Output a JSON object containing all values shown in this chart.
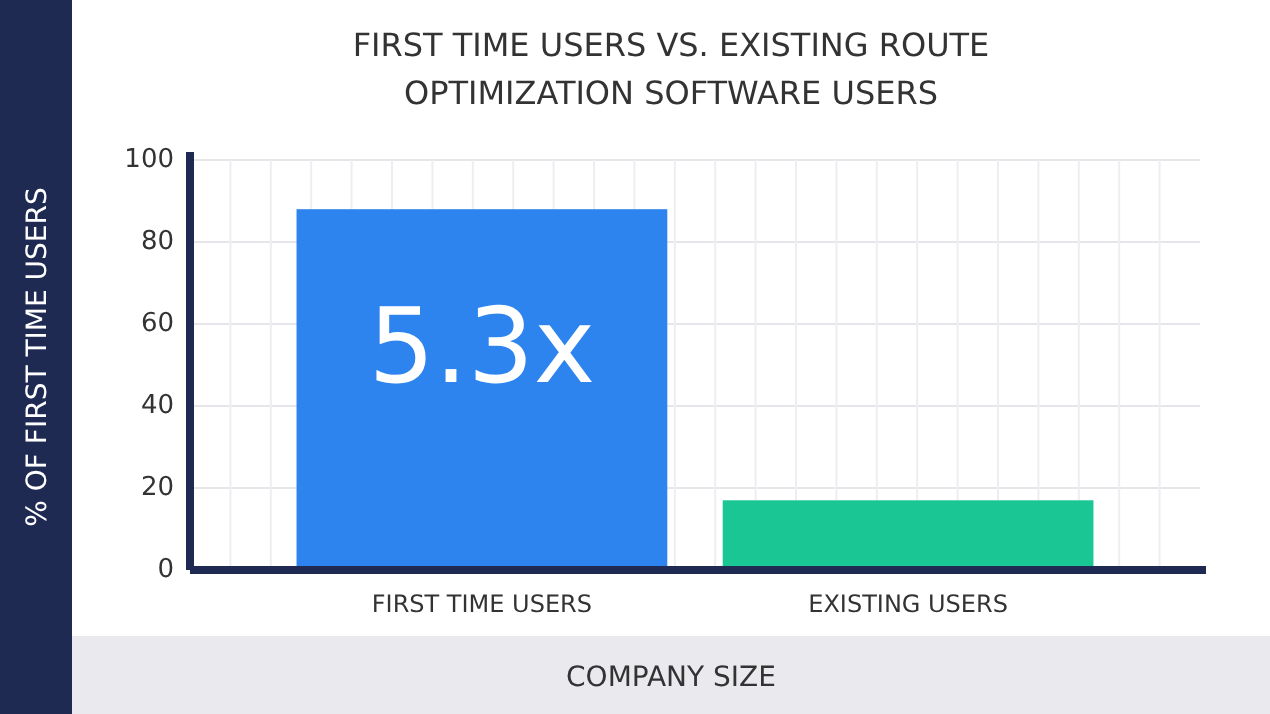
{
  "chart_data": {
    "type": "bar",
    "title": "FIRST TIME USERS VS. EXISTING ROUTE OPTIMIZATION SOFTWARE USERS",
    "xlabel": "COMPANY SIZE",
    "ylabel": "% OF FIRST TIME USERS",
    "categories": [
      "FIRST TIME USERS",
      "EXISTING USERS"
    ],
    "values": [
      88,
      17
    ],
    "colors": [
      "#2d84ef",
      "#1ac694"
    ],
    "ylim": [
      0,
      100
    ],
    "yticks": [
      0,
      20,
      40,
      60,
      80,
      100
    ],
    "grid": true,
    "annotations": [
      "5.3x"
    ]
  }
}
